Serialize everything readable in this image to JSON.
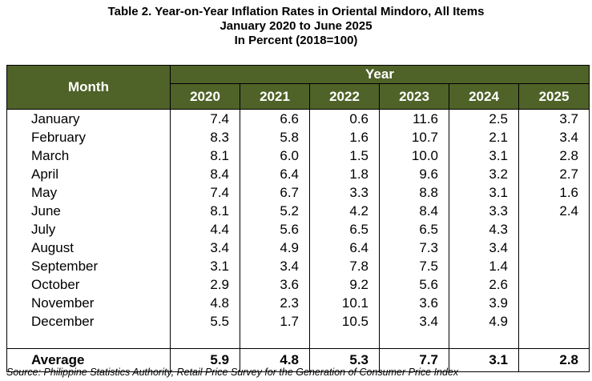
{
  "title": {
    "line1": "Table 2. Year-on-Year Inflation Rates in Oriental Mindoro, All Items",
    "line2": "January 2020 to June 2025",
    "line3": "In Percent (2018=100)"
  },
  "table": {
    "month_header": "Month",
    "year_header": "Year",
    "years": [
      "2020",
      "2021",
      "2022",
      "2023",
      "2024",
      "2025"
    ],
    "rows": [
      {
        "month": "January",
        "values": [
          "7.4",
          "6.6",
          "0.6",
          "11.6",
          "2.5",
          "3.7"
        ]
      },
      {
        "month": "February",
        "values": [
          "8.3",
          "5.8",
          "1.6",
          "10.7",
          "2.1",
          "3.4"
        ]
      },
      {
        "month": "March",
        "values": [
          "8.1",
          "6.0",
          "1.5",
          "10.0",
          "3.1",
          "2.8"
        ]
      },
      {
        "month": "April",
        "values": [
          "8.4",
          "6.4",
          "1.8",
          "9.6",
          "3.2",
          "2.7"
        ]
      },
      {
        "month": "May",
        "values": [
          "7.4",
          "6.7",
          "3.3",
          "8.8",
          "3.1",
          "1.6"
        ]
      },
      {
        "month": "June",
        "values": [
          "8.1",
          "5.2",
          "4.2",
          "8.4",
          "3.3",
          "2.4"
        ]
      },
      {
        "month": "July",
        "values": [
          "4.4",
          "5.6",
          "6.5",
          "6.5",
          "4.3",
          ""
        ]
      },
      {
        "month": "August",
        "values": [
          "3.4",
          "4.9",
          "6.4",
          "7.3",
          "3.4",
          ""
        ]
      },
      {
        "month": "September",
        "values": [
          "3.1",
          "3.4",
          "7.8",
          "7.5",
          "1.4",
          ""
        ]
      },
      {
        "month": "October",
        "values": [
          "2.9",
          "3.6",
          "9.2",
          "5.6",
          "2.6",
          ""
        ]
      },
      {
        "month": "November",
        "values": [
          "4.8",
          "2.3",
          "10.1",
          "3.6",
          "3.9",
          ""
        ]
      },
      {
        "month": "December",
        "values": [
          "5.5",
          "1.7",
          "10.5",
          "3.4",
          "4.9",
          ""
        ]
      }
    ],
    "average": {
      "label": "Average",
      "values": [
        "5.9",
        "4.8",
        "5.3",
        "7.7",
        "3.1",
        "2.8"
      ]
    }
  },
  "source": "Source: Philippine Statistics Authority, Retail Price Survey for the Generation of Consumer Price Index",
  "colors": {
    "header_bg": "#4f6228",
    "header_text": "#ffffff"
  }
}
